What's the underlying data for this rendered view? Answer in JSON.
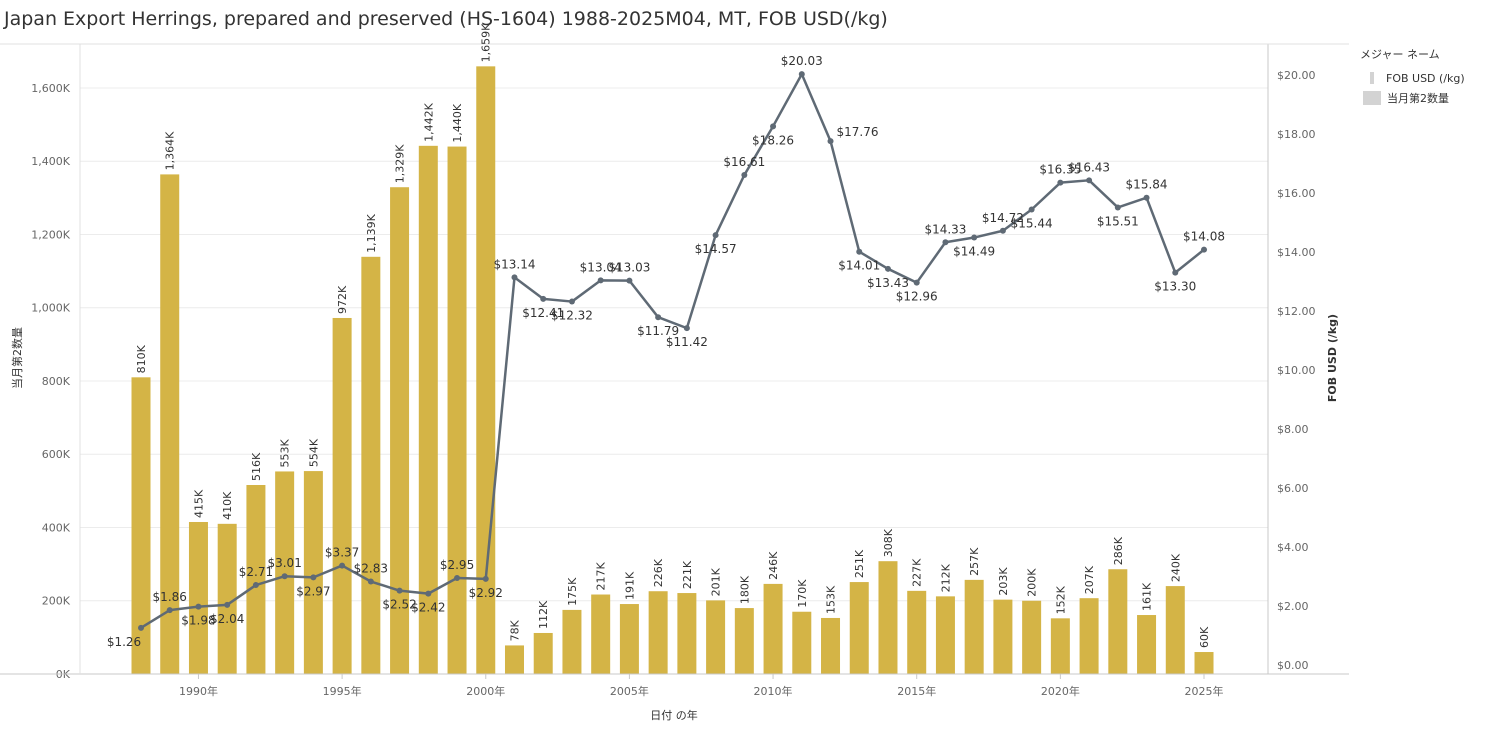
{
  "title": "Japan Export  Herrings, prepared and preserved (HS-1604) 1988-2025M04, MT, FOB USD(/kg)",
  "legend": {
    "title": "メジャー ネーム",
    "items": [
      {
        "label": "FOB USD (/kg)",
        "kind": "line"
      },
      {
        "label": "当月第2数量",
        "kind": "bar"
      }
    ]
  },
  "colors": {
    "bar": "#d4b446",
    "line": "#5f6a75",
    "grid": "#ececec",
    "axis": "#c8c8c8"
  },
  "chart_data": {
    "type": "bar",
    "xlabel": "日付 の年",
    "ylabel_left": "当月第2数量",
    "ylabel_right": "FOB USD (/kg)",
    "ylim_left": [
      0,
      1720000
    ],
    "ylim_right": [
      0,
      21
    ],
    "left_ticks": [
      {
        "v": 0,
        "t": "0K"
      },
      {
        "v": 200000,
        "t": "200K"
      },
      {
        "v": 400000,
        "t": "400K"
      },
      {
        "v": 600000,
        "t": "600K"
      },
      {
        "v": 800000,
        "t": "800K"
      },
      {
        "v": 1000000,
        "t": "1,000K"
      },
      {
        "v": 1200000,
        "t": "1,200K"
      },
      {
        "v": 1400000,
        "t": "1,400K"
      },
      {
        "v": 1600000,
        "t": "1,600K"
      }
    ],
    "right_ticks": [
      {
        "v": 0,
        "t": "$0.00"
      },
      {
        "v": 2,
        "t": "$2.00"
      },
      {
        "v": 4,
        "t": "$4.00"
      },
      {
        "v": 6,
        "t": "$6.00"
      },
      {
        "v": 8,
        "t": "$8.00"
      },
      {
        "v": 10,
        "t": "$10.00"
      },
      {
        "v": 12,
        "t": "$12.00"
      },
      {
        "v": 14,
        "t": "$14.00"
      },
      {
        "v": 16,
        "t": "$16.00"
      },
      {
        "v": 18,
        "t": "$18.00"
      },
      {
        "v": 20,
        "t": "$20.00"
      }
    ],
    "x_ticks": [
      {
        "year": 1990,
        "t": "1990年"
      },
      {
        "year": 1995,
        "t": "1995年"
      },
      {
        "year": 2000,
        "t": "2000年"
      },
      {
        "year": 2005,
        "t": "2005年"
      },
      {
        "year": 2010,
        "t": "2010年"
      },
      {
        "year": 2015,
        "t": "2015年"
      },
      {
        "year": 2020,
        "t": "2020年"
      },
      {
        "year": 2025,
        "t": "2025年"
      }
    ],
    "years": [
      1988,
      1989,
      1990,
      1991,
      1992,
      1993,
      1994,
      1995,
      1996,
      1997,
      1998,
      1999,
      2000,
      2001,
      2002,
      2003,
      2004,
      2005,
      2006,
      2007,
      2008,
      2009,
      2010,
      2011,
      2012,
      2013,
      2014,
      2015,
      2016,
      2017,
      2018,
      2019,
      2020,
      2021,
      2022,
      2023,
      2024,
      2025
    ],
    "series": [
      {
        "name": "当月第2数量",
        "kind": "bar",
        "values": [
          810000,
          1364000,
          415000,
          410000,
          516000,
          553000,
          554000,
          972000,
          1139000,
          1329000,
          1442000,
          1440000,
          1659000,
          78000,
          112000,
          175000,
          217000,
          191000,
          226000,
          221000,
          201000,
          180000,
          246000,
          170000,
          153000,
          251000,
          308000,
          227000,
          212000,
          257000,
          203000,
          200000,
          152000,
          207000,
          286000,
          161000,
          240000,
          60000
        ],
        "labels": [
          "810K",
          "1,364K",
          "415K",
          "410K",
          "516K",
          "553K",
          "554K",
          "972K",
          "1,139K",
          "1,329K",
          "1,442K",
          "1,440K",
          "1,659K",
          "78K",
          "112K",
          "175K",
          "217K",
          "191K",
          "226K",
          "221K",
          "201K",
          "180K",
          "246K",
          "170K",
          "153K",
          "251K",
          "308K",
          "227K",
          "212K",
          "257K",
          "203K",
          "200K",
          "152K",
          "207K",
          "286K",
          "161K",
          "240K",
          "60K"
        ]
      },
      {
        "name": "FOB USD (/kg)",
        "kind": "line",
        "values": [
          1.26,
          1.86,
          1.98,
          2.04,
          2.71,
          3.01,
          2.97,
          3.37,
          2.83,
          2.52,
          2.42,
          2.95,
          2.92,
          13.14,
          12.41,
          12.32,
          13.04,
          13.03,
          11.79,
          11.42,
          14.57,
          16.61,
          18.26,
          20.03,
          17.76,
          14.01,
          13.43,
          12.96,
          14.33,
          14.49,
          14.72,
          15.44,
          16.35,
          16.43,
          15.51,
          15.84,
          13.3,
          14.08
        ],
        "labels": [
          "$1.26",
          "$1.86",
          "$1.98",
          "$2.04",
          "$2.71",
          "$3.01",
          "$2.97",
          "$3.37",
          "$2.83",
          "$2.52",
          "$2.42",
          "$2.95",
          "$2.92",
          "$13.14",
          "$12.41",
          "$12.32",
          "$13.04",
          "$13.03",
          "$11.79",
          "$11.42",
          "$14.57",
          "$16.61",
          "$18.26",
          "$20.03",
          "$17.76",
          "$14.01",
          "$13.43",
          "$12.96",
          "$14.33",
          "$14.49",
          "$14.72",
          "$15.44",
          "$16.35",
          "$16.43",
          "$15.51",
          "$15.84",
          "$13.30",
          "$14.08"
        ],
        "label_pos": [
          "below",
          "above",
          "below",
          "below",
          "above",
          "above",
          "below",
          "above",
          "above",
          "below",
          "below",
          "above",
          "below",
          "above",
          "below",
          "below",
          "above",
          "above",
          "below",
          "below",
          "below",
          "above",
          "below",
          "above",
          "right",
          "below",
          "below",
          "below",
          "above",
          "below",
          "above",
          "below",
          "above",
          "above",
          "below",
          "above",
          "below",
          "above"
        ]
      }
    ]
  }
}
